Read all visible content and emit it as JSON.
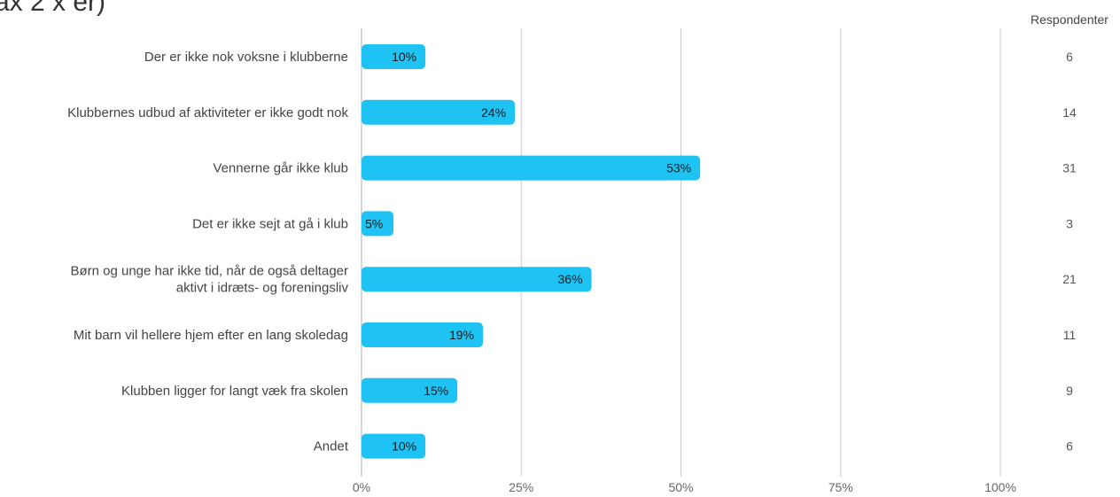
{
  "header": {
    "partial_title": "ax 2 x er)"
  },
  "chart_data": {
    "type": "bar",
    "orientation": "horizontal",
    "categories": [
      [
        "Der er ikke nok voksne i klubberne"
      ],
      [
        "Klubbernes udbud af aktiviteter er ikke godt nok"
      ],
      [
        "Vennerne går ikke klub"
      ],
      [
        "Det er ikke sejt at gå i klub"
      ],
      [
        "Børn og unge har ikke tid, når de også deltager",
        "aktivt i idræts- og foreningsliv"
      ],
      [
        "Mit barn vil hellere hjem efter en lang skoledag"
      ],
      [
        "Klubben ligger for langt væk fra skolen"
      ],
      [
        "Andet"
      ]
    ],
    "values": [
      10,
      24,
      53,
      5,
      36,
      19,
      15,
      10
    ],
    "value_labels": [
      "10%",
      "24%",
      "53%",
      "5%",
      "36%",
      "19%",
      "15%",
      "10%"
    ],
    "respondents_header": "Respondenter",
    "respondents": [
      "6",
      "14",
      "31",
      "3",
      "21",
      "11",
      "9",
      "6"
    ],
    "xlim": [
      0,
      100
    ],
    "x_ticks": [
      0,
      25,
      50,
      75,
      100
    ],
    "x_tick_labels": [
      "0%",
      "25%",
      "50%",
      "75%",
      "100%"
    ],
    "grid": true,
    "bar_color": "#1ec3f4",
    "grid_color": "#cccccc"
  }
}
